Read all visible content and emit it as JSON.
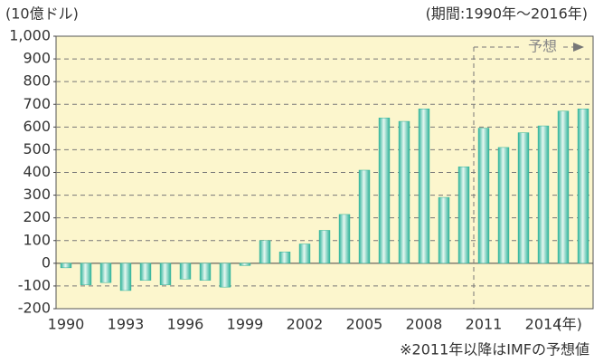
{
  "chart_data": {
    "type": "bar",
    "y_unit": "(10億ドル)",
    "subtitle": "(期間:1990年～2016年)",
    "x_unit": "(年)",
    "annotation": "予想",
    "footnote": "※2011年以降はIMFの予想値",
    "categories": [
      "1990",
      null,
      null,
      "1993",
      null,
      null,
      "1996",
      null,
      null,
      "1999",
      null,
      null,
      "2002",
      null,
      null,
      "2005",
      null,
      null,
      "2008",
      null,
      null,
      "2011",
      null,
      null,
      "2014",
      null,
      null
    ],
    "values": [
      -20,
      -95,
      -85,
      -120,
      -75,
      -95,
      -70,
      -75,
      -105,
      -10,
      100,
      50,
      85,
      145,
      215,
      410,
      640,
      625,
      680,
      290,
      425,
      595,
      510,
      575,
      605,
      670,
      680
    ],
    "color": "#2fb39a",
    "ylim": [
      -200,
      1000
    ],
    "yticks": [
      -200,
      -100,
      0,
      100,
      200,
      300,
      400,
      500,
      600,
      700,
      800,
      900,
      {
        "value": 1000,
        "label": "1,000"
      }
    ],
    "grid": true
  }
}
